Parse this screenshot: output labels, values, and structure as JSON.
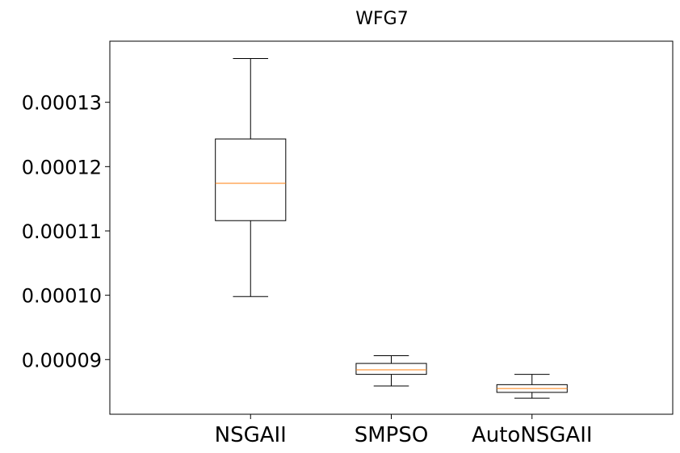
{
  "chart_data": {
    "type": "box",
    "title": "WFG7",
    "xlabel": "",
    "ylabel": "",
    "categories": [
      "NSGAII",
      "SMPSO",
      "AutoNSGAII"
    ],
    "ylim": [
      8.15e-05,
      0.0001395
    ],
    "yticks": [
      9e-05,
      0.0001,
      0.00011,
      0.00012,
      0.00013
    ],
    "ytick_labels": [
      "0.00009",
      "0.00010",
      "0.00011",
      "0.00012",
      "0.00013"
    ],
    "grid": false,
    "legend": "none",
    "boxes": [
      {
        "name": "NSGAII",
        "whisker_low": 9.98e-05,
        "q1": 0.0001116,
        "median": 0.0001174,
        "q3": 0.0001243,
        "whisker_high": 0.0001368
      },
      {
        "name": "SMPSO",
        "whisker_low": 8.59e-05,
        "q1": 8.77e-05,
        "median": 8.84e-05,
        "q3": 8.94e-05,
        "whisker_high": 9.06e-05
      },
      {
        "name": "AutoNSGAII",
        "whisker_low": 8.4e-05,
        "q1": 8.49e-05,
        "median": 8.55e-05,
        "q3": 8.61e-05,
        "whisker_high": 8.77e-05
      }
    ],
    "colors": {
      "box": "#000000",
      "median": "#ff7f0e",
      "axis": "#000000"
    }
  }
}
